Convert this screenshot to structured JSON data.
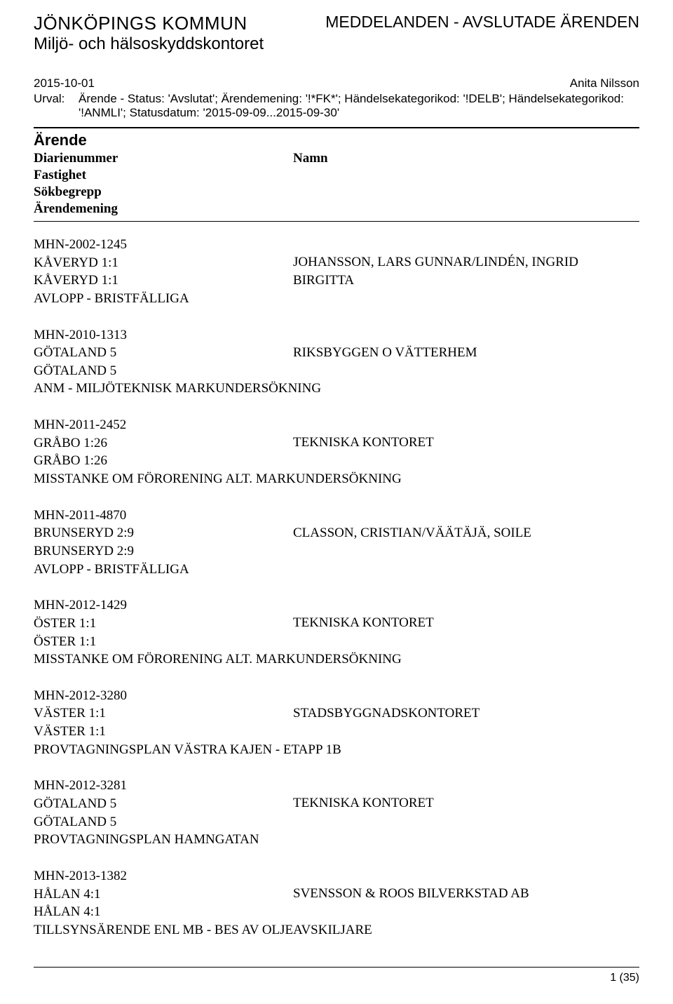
{
  "header": {
    "org_title": "JÖNKÖPINGS KOMMUN",
    "org_sub": "Miljö- och hälsoskyddskontoret",
    "doc_title": "MEDDELANDEN - AVSLUTADE ÄRENDEN"
  },
  "meta": {
    "date": "2015-10-01",
    "author": "Anita Nilsson",
    "urval_label": "Urval:",
    "urval_text": "Ärende - Status: 'Avslutat'; Ärendemening: '!*FK*'; Händelsekategorikod: '!DELB'; Händelsekategorikod: '!ANMLI'; Statusdatum: '2015-09-09...2015-09-30'"
  },
  "section": {
    "heading": "Ärende",
    "col_diarie": "Diarienummer",
    "col_fastighet": "Fastighet",
    "col_sokbegrepp": "Sökbegrepp",
    "col_arendemening": "Ärendemening",
    "col_namn": "Namn"
  },
  "entries": [
    {
      "diarie": "MHN-2002-1245",
      "fastighet": "KÅVERYD 1:1",
      "sokbegrepp": "KÅVERYD 1:1",
      "namn": "JOHANSSON, LARS GUNNAR/LINDÉN, INGRID BIRGITTA",
      "mening": "AVLOPP - BRISTFÄLLIGA"
    },
    {
      "diarie": "MHN-2010-1313",
      "fastighet": "GÖTALAND 5",
      "sokbegrepp": "GÖTALAND 5",
      "namn": "RIKSBYGGEN O VÄTTERHEM",
      "mening": "ANM - MILJÖTEKNISK MARKUNDERSÖKNING"
    },
    {
      "diarie": "MHN-2011-2452",
      "fastighet": "GRÅBO 1:26",
      "sokbegrepp": "GRÅBO 1:26",
      "namn": "TEKNISKA KONTORET",
      "mening": "MISSTANKE OM FÖRORENING ALT. MARKUNDERSÖKNING"
    },
    {
      "diarie": "MHN-2011-4870",
      "fastighet": "BRUNSERYD 2:9",
      "sokbegrepp": "BRUNSERYD 2:9",
      "namn": "CLASSON, CRISTIAN/VÄÄTÄJÄ, SOILE",
      "mening": "AVLOPP - BRISTFÄLLIGA"
    },
    {
      "diarie": "MHN-2012-1429",
      "fastighet": "ÖSTER 1:1",
      "sokbegrepp": "ÖSTER 1:1",
      "namn": "TEKNISKA KONTORET",
      "mening": "MISSTANKE OM FÖRORENING ALT. MARKUNDERSÖKNING"
    },
    {
      "diarie": "MHN-2012-3280",
      "fastighet": "VÄSTER 1:1",
      "sokbegrepp": "VÄSTER 1:1",
      "namn": "STADSBYGGNADSKONTORET",
      "mening": "PROVTAGNINGSPLAN VÄSTRA KAJEN - ETAPP 1B"
    },
    {
      "diarie": "MHN-2012-3281",
      "fastighet": "GÖTALAND 5",
      "sokbegrepp": "GÖTALAND 5",
      "namn": "TEKNISKA KONTORET",
      "mening": "PROVTAGNINGSPLAN HAMNGATAN"
    },
    {
      "diarie": "MHN-2013-1382",
      "fastighet": "HÅLAN 4:1",
      "sokbegrepp": "HÅLAN 4:1",
      "namn": "SVENSSON & ROOS BILVERKSTAD AB",
      "mening": "TILLSYNSÄRENDE ENL MB - BES AV OLJEAVSKILJARE"
    }
  ],
  "footer": {
    "page": "1 (35)"
  }
}
